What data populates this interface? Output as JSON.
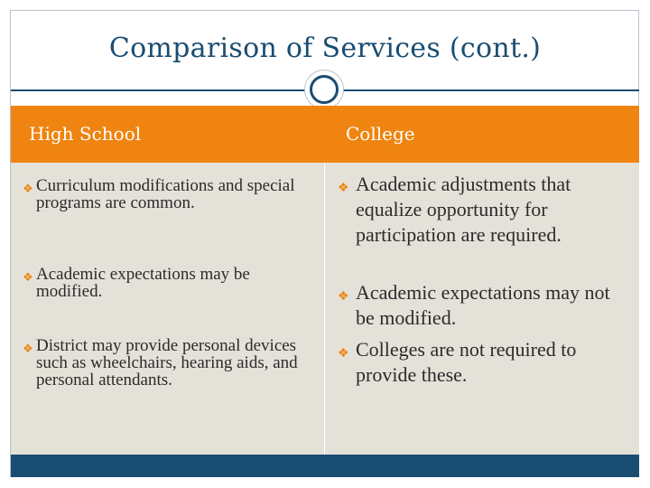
{
  "slide": {
    "title": "Comparison of Services (cont.)",
    "colors": {
      "accent_orange": "#ef8410",
      "navy": "#1a4d72",
      "body_bg": "#e4e1d9"
    }
  },
  "table": {
    "headers": [
      "High School",
      "College"
    ],
    "high_school_items": [
      "Curriculum modifications and special programs are common.",
      "Academic expectations may be modified.",
      "District may provide personal devices such as wheelchairs, hearing aids, and personal attendants."
    ],
    "college_items": [
      "Academic adjustments that equalize opportunity for participation are required.",
      "Academic expectations may not be modified.",
      "Colleges are not required to provide these."
    ],
    "bullet_icon": "ornate-bullet-icon"
  }
}
